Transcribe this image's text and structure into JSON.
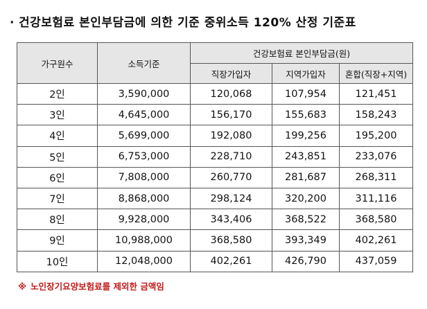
{
  "title": {
    "bullet": "·",
    "text": "건강보험료 본인부담금에 의한 기준 중위소득 120% 산정 기준표"
  },
  "table": {
    "headers": {
      "household": "가구원수",
      "income": "소득기준",
      "group": "건강보험료 본인부담금(원)",
      "employee": "직장가입자",
      "regional": "지역가입자",
      "mixed": "혼합(직장+지역)"
    },
    "rows": [
      {
        "household": "2인",
        "income": "3,590,000",
        "employee": "120,068",
        "regional": "107,954",
        "mixed": "121,451"
      },
      {
        "household": "3인",
        "income": "4,645,000",
        "employee": "156,170",
        "regional": "155,683",
        "mixed": "158,243"
      },
      {
        "household": "4인",
        "income": "5,699,000",
        "employee": "192,080",
        "regional": "199,256",
        "mixed": "195,200"
      },
      {
        "household": "5인",
        "income": "6,753,000",
        "employee": "228,710",
        "regional": "243,851",
        "mixed": "233,076"
      },
      {
        "household": "6인",
        "income": "7,808,000",
        "employee": "260,770",
        "regional": "281,687",
        "mixed": "268,311"
      },
      {
        "household": "7인",
        "income": "8,868,000",
        "employee": "298,124",
        "regional": "320,200",
        "mixed": "311,116"
      },
      {
        "household": "8인",
        "income": "9,928,000",
        "employee": "343,406",
        "regional": "368,522",
        "mixed": "368,580"
      },
      {
        "household": "9인",
        "income": "10,988,000",
        "employee": "368,580",
        "regional": "393,349",
        "mixed": "402,261"
      },
      {
        "household": "10인",
        "income": "12,048,000",
        "employee": "402,261",
        "regional": "426,790",
        "mixed": "437,059"
      }
    ]
  },
  "note": {
    "mark": "※",
    "text": "노인장기요양보험료를 제외한 금액임"
  },
  "colors": {
    "header_bg": "#e6e6e6",
    "border": "#555555",
    "note": "#c41a1a"
  }
}
